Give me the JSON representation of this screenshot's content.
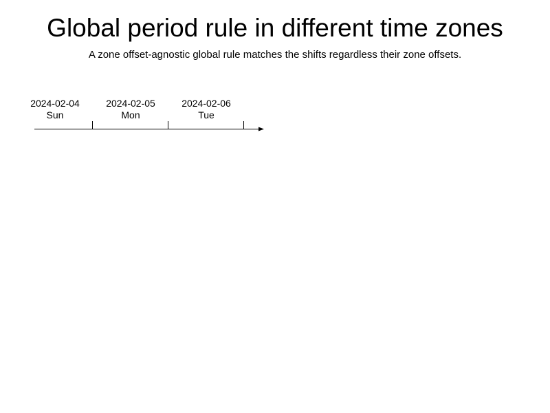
{
  "title": "Global period rule in different time zones",
  "subtitle": "A zone offset-agnostic global rule matches the shifts regardless their zone offsets.",
  "timeline": {
    "days": [
      {
        "date": "2024-02-04",
        "weekday": "Sun"
      },
      {
        "date": "2024-02-05",
        "weekday": "Mon"
      },
      {
        "date": "2024-02-06",
        "weekday": "Tue"
      }
    ]
  }
}
